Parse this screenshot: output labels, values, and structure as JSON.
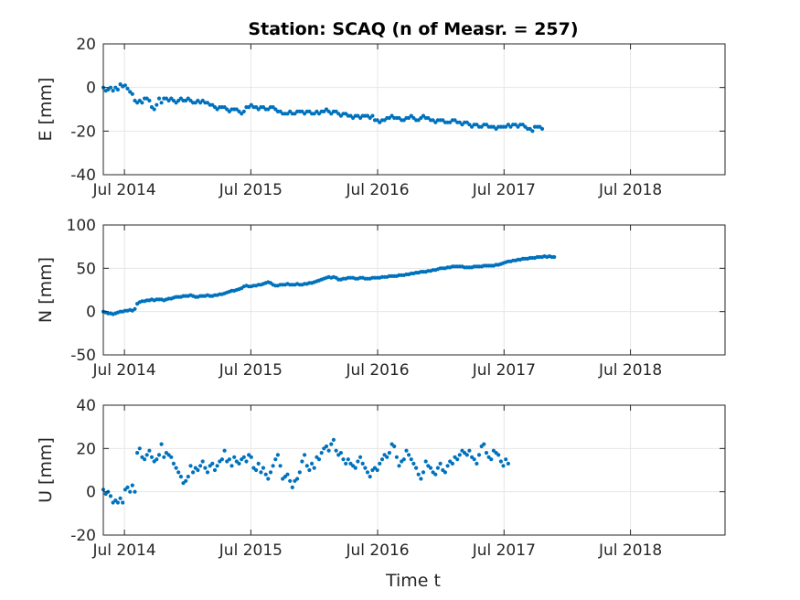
{
  "title": "Station: SCAQ (n of Measr. = 257)",
  "xlabel": "Time t",
  "colors": {
    "marker": "#0072BD",
    "grid": "#e6e6e6",
    "axis": "#262626"
  },
  "chart_data": [
    {
      "type": "scatter",
      "ylabel": "E [mm]",
      "ylim": [
        -40,
        20
      ],
      "yticks": [
        -40,
        -20,
        0,
        20
      ],
      "xlim": [
        "2014-05-01",
        "2019-03-31"
      ],
      "xticks": [
        "2014-07-01",
        "2015-07-01",
        "2016-07-01",
        "2017-07-01",
        "2018-07-01"
      ],
      "xticklabels": [
        "Jul 2014",
        "Jul 2015",
        "Jul 2016",
        "Jul 2017",
        "Jul 2018"
      ],
      "grid": true,
      "series": [
        {
          "x_start": "2014-05-01",
          "x_step_days": 7,
          "values": [
            0,
            -1.5,
            -1,
            0,
            -1.5,
            0,
            -1,
            1.5,
            0.5,
            1,
            -0.5,
            -2,
            -3,
            -6,
            -7,
            -6,
            -7,
            -5,
            -5,
            -6,
            -9,
            -10,
            -8,
            -5,
            -7,
            -5,
            -5,
            -6,
            -5,
            -6,
            -7,
            -6,
            -5,
            -6,
            -6,
            -5,
            -6,
            -7,
            -7,
            -6,
            -7,
            -6,
            -7,
            -7,
            -8,
            -8,
            -9,
            -10,
            -9,
            -9,
            -9,
            -10,
            -11,
            -10,
            -10,
            -10,
            -11,
            -12,
            -11,
            -9,
            -9,
            -8,
            -9,
            -9,
            -10,
            -9,
            -9,
            -10,
            -10,
            -9,
            -9,
            -10,
            -11,
            -11,
            -12,
            -12,
            -12,
            -11,
            -12,
            -12,
            -11,
            -11,
            -11,
            -12,
            -11,
            -11,
            -12,
            -12,
            -11,
            -12,
            -11,
            -11,
            -10,
            -11,
            -12,
            -11,
            -11,
            -12,
            -13,
            -12,
            -12,
            -13,
            -13,
            -14,
            -13,
            -13,
            -14,
            -13,
            -13,
            -13,
            -14,
            -13,
            -15,
            -15,
            -16,
            -15,
            -15,
            -14,
            -14,
            -13,
            -14,
            -14,
            -14,
            -15,
            -15,
            -14,
            -14,
            -13,
            -14,
            -15,
            -15,
            -14,
            -13,
            -14,
            -14,
            -15,
            -15,
            -16,
            -15,
            -15,
            -15,
            -16,
            -16,
            -16,
            -15,
            -15,
            -16,
            -16,
            -17,
            -16,
            -16,
            -17,
            -18,
            -17,
            -17,
            -18,
            -18,
            -17,
            -17,
            -18,
            -18,
            -18,
            -19,
            -18,
            -18,
            -18,
            -18,
            -17,
            -18,
            -17,
            -17,
            -18,
            -17,
            -17,
            -18,
            -19,
            -19,
            -20,
            -18,
            -18,
            -18,
            -19
          ]
        }
      ]
    },
    {
      "type": "scatter",
      "ylabel": "N [mm]",
      "ylim": [
        -50,
        100
      ],
      "yticks": [
        -50,
        0,
        50,
        100
      ],
      "xlim": [
        "2014-05-01",
        "2019-03-31"
      ],
      "xticks": [
        "2014-07-01",
        "2015-07-01",
        "2016-07-01",
        "2017-07-01",
        "2018-07-01"
      ],
      "xticklabels": [
        "Jul 2014",
        "Jul 2015",
        "Jul 2016",
        "Jul 2017",
        "Jul 2018"
      ],
      "grid": true,
      "series": [
        {
          "x_start": "2014-05-01",
          "x_step_days": 7,
          "values": [
            0,
            -1,
            -2,
            -2,
            -3,
            -2,
            -1,
            0,
            0,
            1,
            1,
            2,
            1,
            3,
            9,
            11,
            12,
            12,
            13,
            13,
            14,
            13,
            14,
            14,
            14,
            13,
            14,
            15,
            15,
            16,
            17,
            17,
            17,
            18,
            18,
            18,
            19,
            18,
            17,
            17,
            18,
            18,
            18,
            19,
            18,
            18,
            19,
            19,
            20,
            20,
            21,
            22,
            23,
            24,
            24,
            25,
            26,
            27,
            29,
            30,
            29,
            29,
            30,
            30,
            31,
            31,
            32,
            33,
            34,
            33,
            31,
            30,
            30,
            31,
            31,
            31,
            32,
            31,
            31,
            31,
            32,
            31,
            31,
            32,
            32,
            33,
            33,
            34,
            35,
            36,
            37,
            38,
            39,
            40,
            39,
            40,
            39,
            37,
            37,
            38,
            38,
            39,
            39,
            39,
            38,
            38,
            39,
            39,
            38,
            38,
            38,
            39,
            39,
            39,
            39,
            40,
            40,
            40,
            41,
            41,
            41,
            41,
            42,
            42,
            42,
            43,
            43,
            44,
            44,
            45,
            45,
            46,
            46,
            46,
            47,
            47,
            48,
            48,
            49,
            50,
            50,
            50,
            51,
            51,
            52,
            52,
            52,
            52,
            52,
            51,
            51,
            51,
            51,
            52,
            52,
            52,
            52,
            53,
            53,
            53,
            53,
            53,
            54,
            54,
            55,
            56,
            57,
            58,
            58,
            59,
            59,
            60,
            60,
            61,
            61,
            61,
            62,
            62,
            62,
            63,
            63,
            63,
            64,
            63,
            64,
            63,
            63
          ]
        }
      ]
    },
    {
      "type": "scatter",
      "ylabel": "U [mm]",
      "ylim": [
        -20,
        40
      ],
      "yticks": [
        -20,
        0,
        20,
        40
      ],
      "xlim": [
        "2014-05-01",
        "2019-03-31"
      ],
      "xticks": [
        "2014-07-01",
        "2015-07-01",
        "2016-07-01",
        "2017-07-01",
        "2018-07-01"
      ],
      "xticklabels": [
        "Jul 2014",
        "Jul 2015",
        "Jul 2016",
        "Jul 2017",
        "Jul 2018"
      ],
      "grid": true,
      "series": [
        {
          "x_start": "2014-05-01",
          "x_step_days": 7,
          "values": [
            1,
            -1,
            0,
            -2,
            -5,
            -4,
            -5,
            -3,
            -5,
            1,
            2,
            0,
            3,
            0,
            18,
            20,
            16,
            15,
            17,
            19,
            16,
            14,
            15,
            17,
            22,
            16,
            18,
            17,
            16,
            13,
            11,
            9,
            7,
            4,
            5,
            7,
            12,
            9,
            11,
            10,
            12,
            14,
            11,
            9,
            12,
            13,
            10,
            12,
            14,
            15,
            19,
            14,
            15,
            12,
            16,
            14,
            13,
            15,
            16,
            14,
            17,
            16,
            11,
            10,
            13,
            9,
            11,
            8,
            6,
            9,
            12,
            15,
            17,
            12,
            6,
            7,
            8,
            5,
            2,
            5,
            6,
            9,
            14,
            17,
            12,
            10,
            13,
            11,
            16,
            15,
            18,
            20,
            21,
            19,
            22,
            24,
            19,
            17,
            18,
            15,
            13,
            15,
            13,
            12,
            11,
            14,
            16,
            13,
            11,
            9,
            7,
            10,
            11,
            10,
            13,
            15,
            17,
            16,
            18,
            22,
            21,
            16,
            12,
            14,
            15,
            19,
            17,
            15,
            13,
            11,
            8,
            6,
            9,
            14,
            12,
            11,
            9,
            8,
            11,
            13,
            10,
            9,
            12,
            14,
            13,
            16,
            15,
            17,
            19,
            18,
            17,
            19,
            16,
            15,
            13,
            17,
            21,
            22,
            18,
            16,
            15,
            19,
            18,
            17,
            14,
            12,
            15,
            13
          ]
        }
      ]
    }
  ]
}
